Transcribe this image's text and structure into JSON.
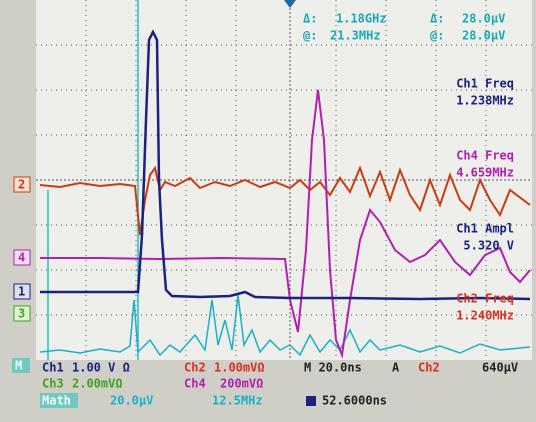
{
  "cursors": [
    {
      "label": "Δ:",
      "value": "1.18GHz"
    },
    {
      "label": "Δ:",
      "value": "28.0μV"
    },
    {
      "label": "@:",
      "value": "21.3MHz"
    },
    {
      "label": "@:",
      "value": "28.0μV"
    }
  ],
  "measurements": [
    {
      "name": "Ch1 Freq",
      "value": "1.238MHz"
    },
    {
      "name": "Ch4 Freq",
      "value": "4.659MHz"
    },
    {
      "name": "Ch1 Ampl",
      "value": "5.320 V"
    },
    {
      "name": "Ch2 Freq",
      "value": "1.240MHz"
    }
  ],
  "markers": [
    "2",
    "4",
    "1",
    "3",
    "M"
  ],
  "status": {
    "row1": [
      "Ch1",
      "1.00 V Ω",
      "Ch2",
      "1.00mVΩ",
      "M 20.0ns",
      "A",
      "Ch2",
      "640μV"
    ],
    "row2": [
      "Ch3",
      "2.00mVΩ",
      "Ch4",
      "200mVΩ"
    ],
    "row3": [
      "Math",
      "20.0μV",
      "12.5MHz",
      "52.6000ns"
    ]
  }
}
